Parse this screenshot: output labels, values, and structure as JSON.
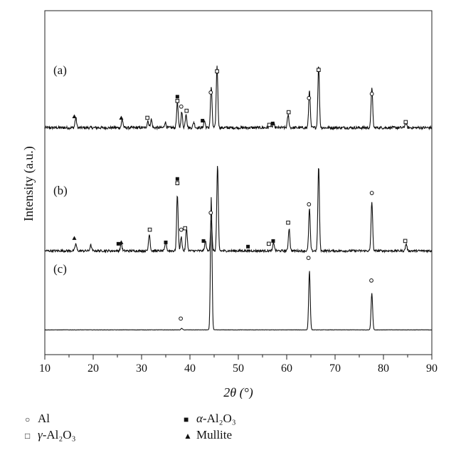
{
  "chart_data": {
    "type": "line",
    "xlabel": "2θ (°)",
    "ylabel": "Intensity (a.u.)",
    "xlim": [
      10,
      90
    ],
    "xticks": [
      "10",
      "20",
      "30",
      "40",
      "50",
      "60",
      "70",
      "80",
      "90"
    ],
    "grid": false,
    "legend_position": "bottom",
    "series": [
      {
        "label": "(a)",
        "baseline": 0.85,
        "noise": 0.05,
        "peaks": [
          {
            "x": 16.4,
            "h": 0.35
          },
          {
            "x": 26.0,
            "h": 0.3
          },
          {
            "x": 31.3,
            "h": 0.25
          },
          {
            "x": 32.0,
            "h": 0.3
          },
          {
            "x": 34.9,
            "h": 0.2
          },
          {
            "x": 37.4,
            "h": 0.9
          },
          {
            "x": 38.3,
            "h": 0.55
          },
          {
            "x": 39.2,
            "h": 0.5
          },
          {
            "x": 40.8,
            "h": 0.2
          },
          {
            "x": 43.0,
            "h": 0.25
          },
          {
            "x": 44.4,
            "h": 1.45
          },
          {
            "x": 45.6,
            "h": 2.2
          },
          {
            "x": 56.5,
            "h": 0.1
          },
          {
            "x": 57.3,
            "h": 0.15
          },
          {
            "x": 60.3,
            "h": 0.45
          },
          {
            "x": 64.7,
            "h": 1.35
          },
          {
            "x": 66.6,
            "h": 2.2
          },
          {
            "x": 77.6,
            "h": 1.45
          },
          {
            "x": 84.6,
            "h": 0.2
          }
        ],
        "markers": [
          {
            "x": 16.1,
            "y": 1.25,
            "s": "triangle"
          },
          {
            "x": 25.8,
            "y": 1.2,
            "s": "triangle"
          },
          {
            "x": 31.2,
            "y": 1.2,
            "s": "open-square"
          },
          {
            "x": 37.4,
            "y": 1.95,
            "s": "filled-square"
          },
          {
            "x": 37.4,
            "y": 1.8,
            "s": "open-square"
          },
          {
            "x": 38.2,
            "y": 1.6,
            "s": "circle"
          },
          {
            "x": 39.3,
            "y": 1.45,
            "s": "open-square"
          },
          {
            "x": 42.6,
            "y": 1.1,
            "s": "filled-square"
          },
          {
            "x": 44.3,
            "y": 2.1,
            "s": "circle"
          },
          {
            "x": 45.6,
            "y": 2.85,
            "s": "open-square"
          },
          {
            "x": 56.4,
            "y": 0.95,
            "s": "open-square"
          },
          {
            "x": 57.1,
            "y": 1.0,
            "s": "filled-square"
          },
          {
            "x": 60.4,
            "y": 1.4,
            "s": "open-square"
          },
          {
            "x": 64.6,
            "y": 1.9,
            "s": "circle"
          },
          {
            "x": 66.6,
            "y": 2.9,
            "s": "open-square"
          },
          {
            "x": 77.6,
            "y": 2.05,
            "s": "circle"
          },
          {
            "x": 84.6,
            "y": 1.05,
            "s": "open-square"
          }
        ]
      },
      {
        "label": "(b)",
        "baseline": 0.6,
        "noise": 0.04,
        "peaks": [
          {
            "x": 16.4,
            "h": 0.25
          },
          {
            "x": 19.5,
            "h": 0.2
          },
          {
            "x": 25.8,
            "h": 0.25
          },
          {
            "x": 31.6,
            "h": 0.6
          },
          {
            "x": 35.0,
            "h": 0.3
          },
          {
            "x": 37.4,
            "h": 2.0
          },
          {
            "x": 38.2,
            "h": 0.5
          },
          {
            "x": 39.3,
            "h": 0.8
          },
          {
            "x": 43.2,
            "h": 0.35
          },
          {
            "x": 44.4,
            "h": 1.1
          },
          {
            "x": 45.7,
            "h": 3.0
          },
          {
            "x": 57.3,
            "h": 0.3
          },
          {
            "x": 60.5,
            "h": 0.8
          },
          {
            "x": 64.7,
            "h": 1.5
          },
          {
            "x": 66.6,
            "h": 3.0
          },
          {
            "x": 77.6,
            "h": 1.75
          },
          {
            "x": 84.7,
            "h": 0.25
          }
        ],
        "markers": [
          {
            "x": 16.1,
            "y": 1.05,
            "s": "triangle"
          },
          {
            "x": 25.2,
            "y": 0.85,
            "s": "filled-square"
          },
          {
            "x": 25.8,
            "y": 0.9,
            "s": "triangle"
          },
          {
            "x": 31.7,
            "y": 1.35,
            "s": "open-square"
          },
          {
            "x": 35.0,
            "y": 0.9,
            "s": "filled-square"
          },
          {
            "x": 37.4,
            "y": 3.15,
            "s": "filled-square"
          },
          {
            "x": 37.4,
            "y": 3.0,
            "s": "open-square"
          },
          {
            "x": 38.2,
            "y": 1.35,
            "s": "circle"
          },
          {
            "x": 39.0,
            "y": 1.4,
            "s": "open-square"
          },
          {
            "x": 42.8,
            "y": 0.95,
            "s": "filled-square"
          },
          {
            "x": 44.3,
            "y": 1.95,
            "s": "circle"
          },
          {
            "x": 52.0,
            "y": 0.75,
            "s": "filled-square"
          },
          {
            "x": 56.3,
            "y": 0.85,
            "s": "open-square"
          },
          {
            "x": 57.2,
            "y": 0.95,
            "s": "filled-square"
          },
          {
            "x": 60.3,
            "y": 1.6,
            "s": "open-square"
          },
          {
            "x": 64.6,
            "y": 2.25,
            "s": "circle"
          },
          {
            "x": 77.6,
            "y": 2.65,
            "s": "circle"
          },
          {
            "x": 84.5,
            "y": 0.95,
            "s": "open-square"
          }
        ]
      },
      {
        "label": "(c)",
        "baseline": 0.5,
        "noise": 0.005,
        "peaks": [
          {
            "x": 38.3,
            "h": 0.05
          },
          {
            "x": 44.4,
            "h": 4.7
          },
          {
            "x": 64.7,
            "h": 2.1
          },
          {
            "x": 77.6,
            "h": 1.3
          }
        ],
        "markers": [
          {
            "x": 38.1,
            "y": 0.9,
            "s": "circle"
          },
          {
            "x": 64.5,
            "y": 3.05,
            "s": "circle"
          },
          {
            "x": 77.5,
            "y": 2.25,
            "s": "circle"
          }
        ]
      }
    ]
  },
  "legend": {
    "col1": [
      {
        "symbol": "○",
        "prefix": "",
        "label": "Al"
      },
      {
        "symbol": "□",
        "prefix": "γ-",
        "label": "Al₂O₃"
      }
    ],
    "col2": [
      {
        "symbol": "■",
        "prefix": "α-",
        "label": "Al₂O₃"
      },
      {
        "symbol": "▲",
        "prefix": "",
        "label": "Mullite"
      }
    ]
  },
  "colors": {
    "line": "#111111",
    "axis": "#222222",
    "background": "#ffffff"
  }
}
